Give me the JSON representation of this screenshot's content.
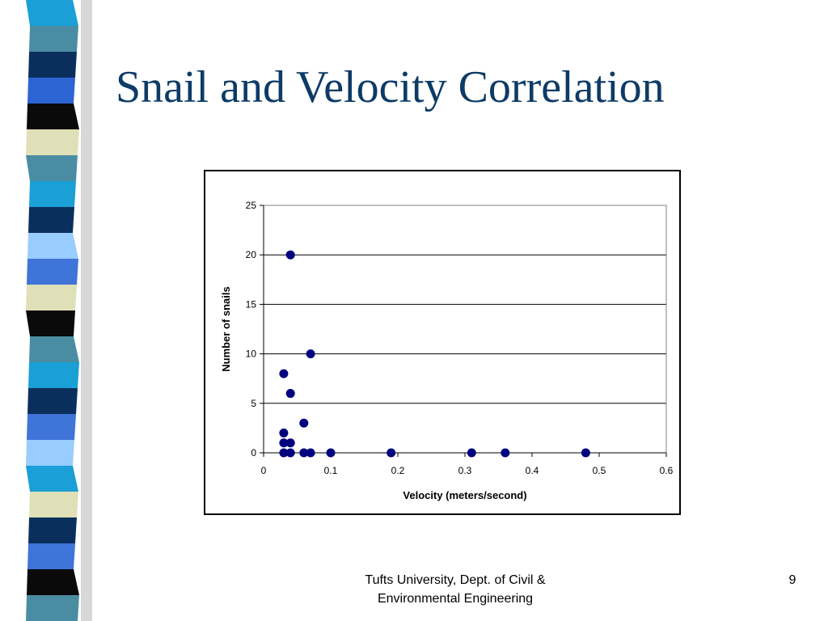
{
  "slide": {
    "title": "Snail and Velocity Correlation",
    "footer_line1": "Tufts University, Dept. of Civil &",
    "footer_line2": "Environmental Engineering",
    "page_number": "9"
  },
  "colors": {
    "title": "#0d3b66",
    "marker": "#00007f",
    "strip": [
      "#1a9fd6",
      "#4a8da3",
      "#0b2f5c",
      "#2c64d4",
      "#0a0a0a",
      "#e0e0b8",
      "#4a8da3",
      "#1a9fd6",
      "#0b2f5c",
      "#99ccff",
      "#3f74d8",
      "#e0e0b8",
      "#0a0a0a",
      "#4a8da3",
      "#1a9fd6",
      "#0b2f5c",
      "#3f74d8",
      "#99ccff",
      "#1a9fd6",
      "#e0e0b8",
      "#0b2f5c",
      "#3f74d8",
      "#0a0a0a",
      "#4a8da3"
    ]
  },
  "chart_data": {
    "type": "scatter",
    "xlabel": "Velocity (meters/second)",
    "ylabel": "Number of snails",
    "xlim": [
      0,
      0.6
    ],
    "ylim": [
      0,
      25
    ],
    "x_ticks": [
      "0",
      "0.1",
      "0.2",
      "0.3",
      "0.4",
      "0.5",
      "0.6"
    ],
    "y_ticks": [
      "0",
      "5",
      "10",
      "15",
      "20",
      "25"
    ],
    "grid": "horizontal",
    "legend": "none",
    "series": [
      {
        "points": [
          [
            0.04,
            20
          ],
          [
            0.07,
            10
          ],
          [
            0.03,
            8
          ],
          [
            0.04,
            6
          ],
          [
            0.06,
            3
          ],
          [
            0.03,
            2
          ],
          [
            0.03,
            1
          ],
          [
            0.04,
            1
          ],
          [
            0.03,
            0
          ],
          [
            0.04,
            0
          ],
          [
            0.06,
            0
          ],
          [
            0.07,
            0
          ],
          [
            0.1,
            0
          ],
          [
            0.19,
            0
          ],
          [
            0.31,
            0
          ],
          [
            0.36,
            0
          ],
          [
            0.48,
            0
          ]
        ]
      }
    ]
  }
}
